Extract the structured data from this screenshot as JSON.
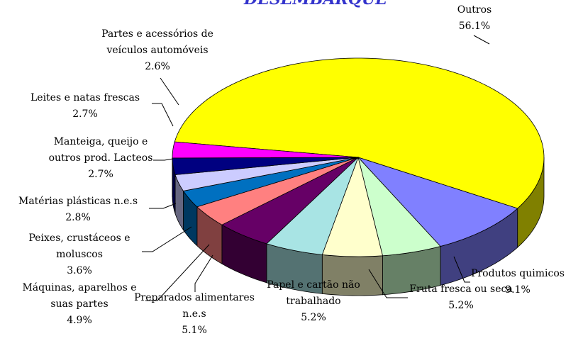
{
  "chart_data": {
    "type": "pie3d",
    "title": "DESEMBARQUE",
    "categories": [
      "Outros",
      "Produtos quimicos",
      "Fruta fresca ou seca",
      "Papel e cartão não\ntrabalhado",
      "Preparados alimentares\nn.e.s",
      "Máquinas, aparelhos e\nsuas partes",
      "Peixes, crustáceos e\nmoluscos",
      "Matérias plásticas n.e.s",
      "Manteiga, queijo e\noutros prod. Lacteos",
      "Leites e natas frescas",
      "Partes e acessórios de\nveículos automóveis"
    ],
    "values": [
      56.1,
      9.1,
      5.2,
      5.2,
      5.1,
      4.9,
      3.6,
      2.8,
      2.7,
      2.7,
      2.6
    ],
    "value_labels": [
      "56.1%",
      "9.1%",
      "5.2%",
      "5.2%",
      "5.1%",
      "4.9%",
      "3.6%",
      "2.8%",
      "2.7%",
      "2.7%",
      "2.6%"
    ],
    "colors": [
      "#ffff00",
      "#8080ff",
      "#ccffcc",
      "#ffffcc",
      "#a8e4e4",
      "#660066",
      "#ff8080",
      "#0070c0",
      "#ccccff",
      "#000080",
      "#ff00ff"
    ]
  }
}
